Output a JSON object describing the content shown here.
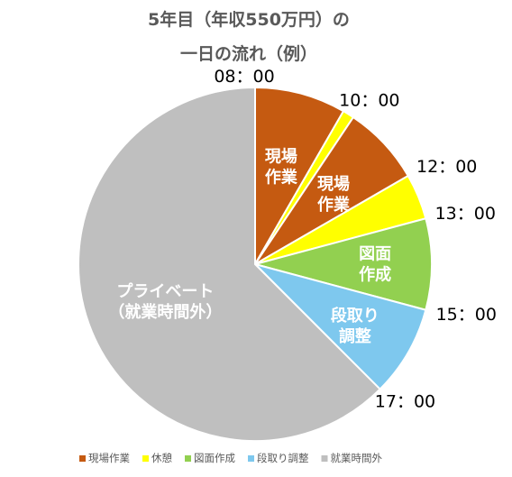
{
  "chart_data": {
    "type": "pie",
    "title": [
      "5年目（年収550万円）の",
      "一日の流れ（例）"
    ],
    "unit": "hours",
    "slices": [
      {
        "category": "現場作業",
        "label": [
          "現場",
          "作業"
        ],
        "start": "08：00",
        "value": 2,
        "color": "#c55a11"
      },
      {
        "category": "休憩",
        "label": [],
        "start": "10：00",
        "value": 0.25,
        "color": "#ffff00"
      },
      {
        "category": "現場作業",
        "label": [
          "現場",
          "作業"
        ],
        "start": "",
        "value": 1.75,
        "color": "#c55a11"
      },
      {
        "category": "休憩",
        "label": [],
        "start": "12：00",
        "value": 1,
        "color": "#ffff00"
      },
      {
        "category": "図面作成",
        "label": [
          "図面",
          "作成"
        ],
        "start": "13：00",
        "value": 2,
        "color": "#92d050"
      },
      {
        "category": "段取り調整",
        "label": [
          "段取り",
          "調整"
        ],
        "start": "15：00",
        "value": 2,
        "color": "#7ec8ee"
      },
      {
        "category": "就業時間外",
        "label": [
          "プライベート",
          "（就業時間外）"
        ],
        "start": "17：00",
        "value": 15,
        "color": "#bfbfbf"
      }
    ],
    "legend": [
      {
        "name": "現場作業",
        "color": "#c55a11"
      },
      {
        "name": "休憩",
        "color": "#ffff00"
      },
      {
        "name": "図面作成",
        "color": "#92d050"
      },
      {
        "name": "段取り調整",
        "color": "#7ec8ee"
      },
      {
        "name": "就業時間外",
        "color": "#bfbfbf"
      }
    ],
    "legend_position": "bottom"
  }
}
